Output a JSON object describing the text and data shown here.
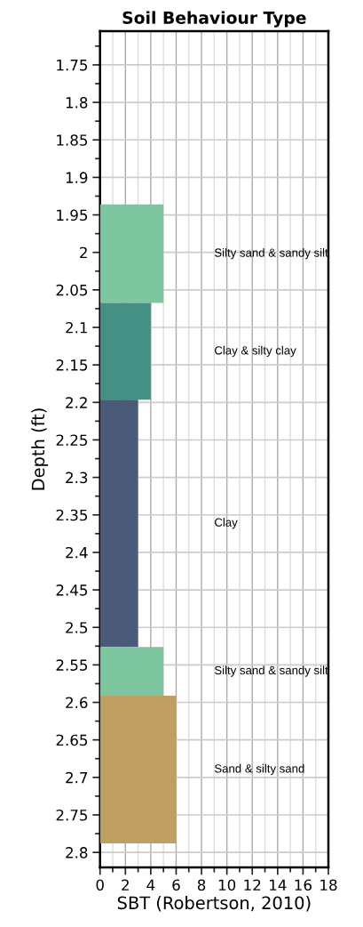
{
  "chart_data": {
    "type": "area",
    "orientation": "horizontal",
    "title": "Soil Behaviour Type",
    "xlabel": "SBT (Robertson, 2010)",
    "ylabel": "Depth (ft)",
    "xlim": [
      0,
      18
    ],
    "xticks": [
      0,
      2,
      4,
      6,
      8,
      10,
      12,
      14,
      16,
      18
    ],
    "ylim": [
      2.82,
      1.705
    ],
    "yticks": [
      1.75,
      1.8,
      1.85,
      1.9,
      1.95,
      2,
      2.05,
      2.1,
      2.15,
      2.2,
      2.25,
      2.3,
      2.35,
      2.4,
      2.45,
      2.5,
      2.55,
      2.6,
      2.65,
      2.7,
      2.75,
      2.8
    ],
    "grid": true,
    "legend": false,
    "series": [
      {
        "name": "Silty sand & sandy silt",
        "color": "#7dc6a0",
        "x": [
          1.936,
          2.0675
        ],
        "values": [
          5,
          5
        ]
      },
      {
        "name": "Clay & silty clay",
        "color": "#459084",
        "x": [
          2.0675,
          2.1965
        ],
        "values": [
          4,
          4
        ]
      },
      {
        "name": "Clay",
        "color": "#4a5a78",
        "x": [
          2.1965,
          2.526
        ],
        "values": [
          3,
          3
        ]
      },
      {
        "name": "Silty sand & sandy silt",
        "color": "#7dc6a0",
        "x": [
          2.526,
          2.591
        ],
        "values": [
          5,
          5
        ]
      },
      {
        "name": "Sand & silty sand",
        "color": "#c0a062",
        "x": [
          2.591,
          2.788
        ],
        "values": [
          6,
          6
        ]
      }
    ]
  }
}
